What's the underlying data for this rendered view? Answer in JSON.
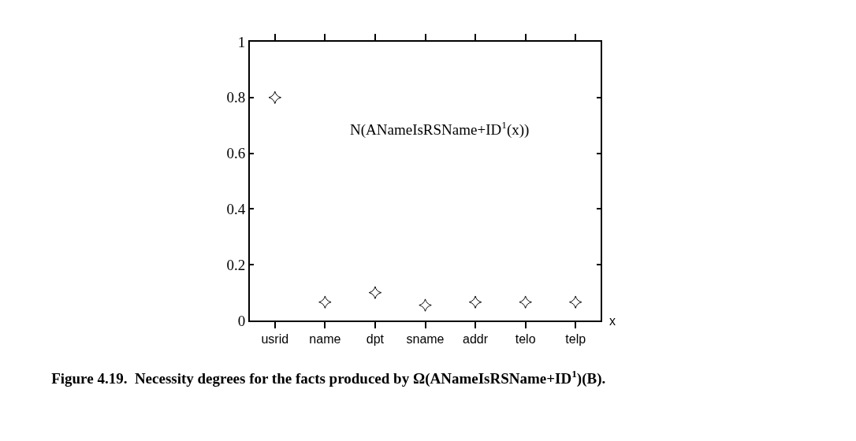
{
  "chart_data": {
    "type": "scatter",
    "title": "Figure 4.19.  Necessity degrees for the facts produced by Ω(ANameIsRSName+ID$^{1}$)(B).",
    "xlabel": "x",
    "categories": [
      "usrid",
      "name",
      "dpt",
      "sname",
      "addr",
      "telo",
      "telp"
    ],
    "series": [
      {
        "color": "#000000",
        "values": [
          0.8,
          0.066,
          0.1,
          0.055,
          0.066,
          0.066,
          0.066
        ]
      }
    ],
    "annotations": [
      "N(ANameIsRSName+ID$^{1}$(x))"
    ],
    "ylim": [
      0,
      1
    ],
    "yticks": [
      0,
      0.2,
      0.4,
      0.6,
      0.8,
      1
    ],
    "grid": false,
    "marker": "diamond"
  }
}
